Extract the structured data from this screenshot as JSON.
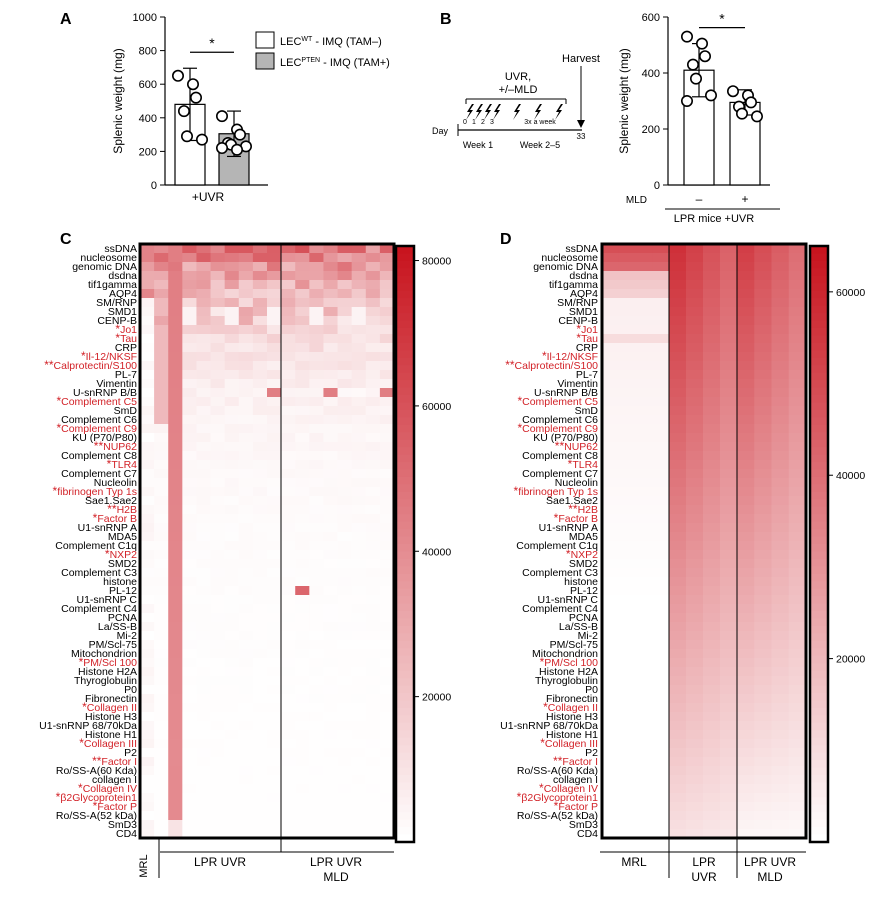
{
  "colors": {
    "heat_max": "#c8141e",
    "label_red": "#d22228",
    "bar_gray": "#b5b5b5"
  },
  "panels": {
    "A": {
      "label": "A",
      "ylabel": "Splenic weight (mg)",
      "yticks": [
        "0",
        "200",
        "400",
        "600",
        "800",
        "1000"
      ],
      "sig": "*",
      "xlabel": "+UVR",
      "legend": [
        {
          "prefix": "LEC",
          "sup": "WT",
          "suffix": " - IMQ (TAM–)"
        },
        {
          "prefix": "LEC",
          "sup": "PTEN",
          "suffix": " - IMQ (TAM+)"
        }
      ]
    },
    "B": {
      "label": "B",
      "ylabel": "Splenic weight (mg)",
      "yticks": [
        "0",
        "200",
        "400",
        "600"
      ],
      "sig": "*",
      "xrow_label": "MLD",
      "xgroup_label": "LPR mice +UVR",
      "xcats": [
        "–",
        "+"
      ],
      "timeline": {
        "harvest": "Harvest",
        "uvr": "UVR,",
        "mld": "+/–MLD",
        "day": "Day",
        "days": [
          "0",
          "1",
          "2",
          "3"
        ],
        "freq": "3x a week",
        "end": "33",
        "week1": "Week 1",
        "week2": "Week 2–5"
      }
    },
    "C": {
      "label": "C",
      "group_labels": [
        "LPR UVR",
        "LPR UVR MLD"
      ],
      "ref_label": "MRL",
      "colorbar_ticks": [
        "80000",
        "60000",
        "40000",
        "20000"
      ]
    },
    "D": {
      "label": "D",
      "group_labels": [
        "MRL",
        "LPR UVR",
        "LPR UVR MLD"
      ],
      "colorbar_ticks": [
        "60000",
        "40000",
        "20000"
      ]
    }
  },
  "heatmap_rows": [
    {
      "prefix": "",
      "name": "ssDNA",
      "red": false
    },
    {
      "prefix": "",
      "name": "nucleosome",
      "red": false
    },
    {
      "prefix": "",
      "name": "genomic DNA",
      "red": false
    },
    {
      "prefix": "",
      "name": "dsdna",
      "red": false
    },
    {
      "prefix": "",
      "name": "tif1gamma",
      "red": false
    },
    {
      "prefix": "",
      "name": "AQP4",
      "red": false
    },
    {
      "prefix": "",
      "name": "SM/RNP",
      "red": false
    },
    {
      "prefix": "",
      "name": "SMD1",
      "red": false
    },
    {
      "prefix": "",
      "name": "CENP-B",
      "red": false
    },
    {
      "prefix": "*",
      "name": "Jo1",
      "red": true
    },
    {
      "prefix": "*",
      "name": "Tau",
      "red": true
    },
    {
      "prefix": "",
      "name": "CRP",
      "red": false
    },
    {
      "prefix": "*",
      "name": "Il-12/NKSF",
      "red": true
    },
    {
      "prefix": "**",
      "name": "Calprotectin/S100",
      "red": true
    },
    {
      "prefix": "",
      "name": "PL-7",
      "red": false
    },
    {
      "prefix": "",
      "name": "Vimentin",
      "red": false
    },
    {
      "prefix": "",
      "name": "U-snRNP B/B",
      "red": false
    },
    {
      "prefix": "*",
      "name": "Complement C5",
      "red": true
    },
    {
      "prefix": "",
      "name": "SmD",
      "red": false
    },
    {
      "prefix": "",
      "name": "Complement C6",
      "red": false
    },
    {
      "prefix": "*",
      "name": "Complement C9",
      "red": true
    },
    {
      "prefix": "",
      "name": "KU (P70/P80)",
      "red": false
    },
    {
      "prefix": "**",
      "name": "NUP62",
      "red": true
    },
    {
      "prefix": "",
      "name": "Complement C8",
      "red": false
    },
    {
      "prefix": "*",
      "name": "TLR4",
      "red": true
    },
    {
      "prefix": "",
      "name": "Complement C7",
      "red": false
    },
    {
      "prefix": "",
      "name": "Nucleolin",
      "red": false
    },
    {
      "prefix": "*",
      "name": "fibrinogen Typ 1s",
      "red": true
    },
    {
      "prefix": "",
      "name": "Sae1.Sae2",
      "red": false
    },
    {
      "prefix": "**",
      "name": "H2B",
      "red": true
    },
    {
      "prefix": "*",
      "name": "Factor B",
      "red": true
    },
    {
      "prefix": "",
      "name": "U1-snRNP A",
      "red": false
    },
    {
      "prefix": "",
      "name": "MDA5",
      "red": false
    },
    {
      "prefix": "",
      "name": "Complement C1q",
      "red": false
    },
    {
      "prefix": "*",
      "name": "NXP2",
      "red": true
    },
    {
      "prefix": "",
      "name": "SMD2",
      "red": false
    },
    {
      "prefix": "",
      "name": "Complement C3",
      "red": false
    },
    {
      "prefix": "",
      "name": "histone",
      "red": false
    },
    {
      "prefix": "",
      "name": "PL-12",
      "red": false
    },
    {
      "prefix": "",
      "name": "U1-snRNP C",
      "red": false
    },
    {
      "prefix": "",
      "name": "Complement C4",
      "red": false
    },
    {
      "prefix": "",
      "name": "PCNA",
      "red": false
    },
    {
      "prefix": "",
      "name": "La/SS-B",
      "red": false
    },
    {
      "prefix": "",
      "name": "Mi-2",
      "red": false
    },
    {
      "prefix": "",
      "name": "PM/Scl-75",
      "red": false
    },
    {
      "prefix": "",
      "name": "Mitochondrion",
      "red": false
    },
    {
      "prefix": "*",
      "name": "PM/Scl 100",
      "red": true
    },
    {
      "prefix": "",
      "name": "Histone H2A",
      "red": false
    },
    {
      "prefix": "",
      "name": "Thyroglobulin",
      "red": false
    },
    {
      "prefix": "",
      "name": "P0",
      "red": false
    },
    {
      "prefix": "",
      "name": "Fibronectin",
      "red": false
    },
    {
      "prefix": "*",
      "name": "Collagen II",
      "red": true
    },
    {
      "prefix": "",
      "name": "Histone H3",
      "red": false
    },
    {
      "prefix": "",
      "name": "U1-snRNP 68/70kDa",
      "red": false
    },
    {
      "prefix": "",
      "name": "Histone H1",
      "red": false
    },
    {
      "prefix": "*",
      "name": "Collagen III",
      "red": true
    },
    {
      "prefix": "",
      "name": "P2",
      "red": false
    },
    {
      "prefix": "**",
      "name": "Factor I",
      "red": true
    },
    {
      "prefix": "",
      "name": "Ro/SS-A(60 Kda)",
      "red": false
    },
    {
      "prefix": "",
      "name": "collagen I",
      "red": false
    },
    {
      "prefix": "*",
      "name": "Collagen IV",
      "red": true
    },
    {
      "prefix": "*",
      "name": "β2Glycoprotein1",
      "red": true
    },
    {
      "prefix": "*",
      "name": "Factor P",
      "red": true
    },
    {
      "prefix": "",
      "name": "Ro/SS-A(52 kDa)",
      "red": false
    },
    {
      "prefix": "",
      "name": "SmD3",
      "red": false
    },
    {
      "prefix": "",
      "name": "CD4",
      "red": false
    }
  ],
  "chart_data": [
    {
      "type": "bar",
      "panel": "A",
      "categories": [
        "LECWT - IMQ (TAM–)",
        "LECPTEN - IMQ (TAM+)"
      ],
      "values": [
        480,
        305
      ],
      "error": [
        215,
        135
      ],
      "points": [
        [
          650,
          600,
          520,
          440,
          290,
          270
        ],
        [
          410,
          330,
          300,
          250,
          240,
          230,
          220,
          210
        ]
      ],
      "ylim": [
        0,
        1000
      ]
    },
    {
      "type": "bar",
      "panel": "B",
      "categories": [
        "–",
        "+"
      ],
      "values": [
        410,
        295
      ],
      "error": [
        95,
        45
      ],
      "points": [
        [
          530,
          505,
          460,
          430,
          380,
          320,
          300
        ],
        [
          335,
          320,
          295,
          280,
          255,
          245
        ]
      ],
      "ylim": [
        0,
        600
      ]
    },
    {
      "type": "heatmap",
      "panel": "C",
      "columns": 18,
      "vmax": 82000,
      "rows": 66
    },
    {
      "type": "heatmap",
      "panel": "D",
      "columns": 3,
      "vmax": 65000,
      "rows": 66
    }
  ]
}
